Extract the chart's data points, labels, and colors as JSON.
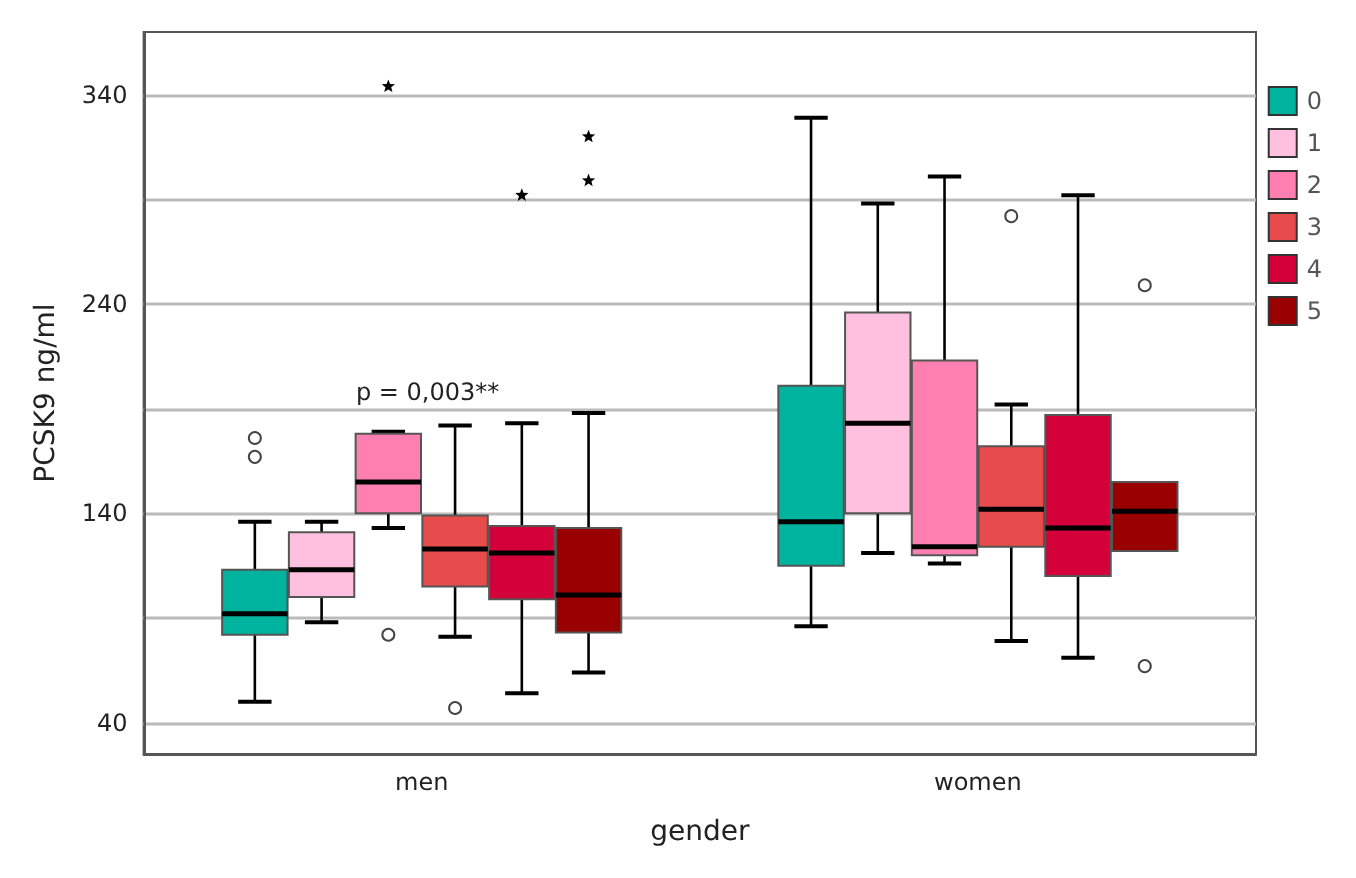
{
  "chart_data": {
    "type": "box",
    "xlabel": "gender",
    "ylabel": "PCSK9 ng/ml",
    "categories": [
      "men",
      "women"
    ],
    "ylim": [
      25,
      370
    ],
    "yticks": [
      40,
      {
        "value": 90,
        "label": null
      },
      140,
      {
        "value": 190,
        "label": null
      },
      240,
      {
        "value": 290,
        "label": null
      },
      340
    ],
    "grid": "y",
    "legend": "top right",
    "annotations": [
      "p = 0,003**"
    ],
    "series": [
      {
        "name": "0",
        "color": "#00b39f",
        "boxes": [
          {
            "low": 50,
            "q1": 82,
            "median": 92,
            "q3": 113,
            "high": 136,
            "outliers": [
              176,
              167
            ]
          },
          {
            "low": 86,
            "q1": 115,
            "median": 136,
            "q3": 201,
            "high": 329
          }
        ]
      },
      {
        "name": "1",
        "color": "#ffc0e0",
        "boxes": [
          {
            "low": 88,
            "q1": 100,
            "median": 113,
            "q3": 131,
            "high": 136
          },
          {
            "low": 121,
            "q1": 140,
            "median": 183,
            "q3": 236,
            "high": 288
          }
        ]
      },
      {
        "name": "2",
        "color": "#ff80b0",
        "boxes": [
          {
            "low": 133,
            "q1": 140,
            "median": 155,
            "q3": 178,
            "high": 179,
            "outliers": [
              82,
              344
            ]
          },
          {
            "low": 116,
            "q1": 120,
            "median": 124,
            "q3": 213,
            "high": 301
          }
        ]
      },
      {
        "name": "3",
        "color": "#e84b4b",
        "boxes": [
          {
            "low": 81,
            "q1": 105,
            "median": 123,
            "q3": 139,
            "high": 182,
            "outliers": [
              47
            ]
          },
          {
            "low": 79,
            "q1": 124,
            "median": 142,
            "q3": 172,
            "high": 192,
            "outliers": [
              282
            ]
          }
        ]
      },
      {
        "name": "4",
        "color": "#d4003a",
        "boxes": [
          {
            "low": 54,
            "q1": 99,
            "median": 121,
            "q3": 134,
            "high": 183,
            "outliers": [
              292
            ]
          },
          {
            "low": 71,
            "q1": 110,
            "median": 133,
            "q3": 187,
            "high": 292
          }
        ]
      },
      {
        "name": "5",
        "color": "#990000",
        "boxes": [
          {
            "low": 64,
            "q1": 83,
            "median": 101,
            "q3": 133,
            "high": 188,
            "outliers": [
              320,
              299
            ]
          },
          {
            "low": 122,
            "q1": 122,
            "median": 141,
            "q3": 155,
            "high": 155,
            "outliers": [
              249,
              67
            ]
          }
        ]
      }
    ]
  }
}
